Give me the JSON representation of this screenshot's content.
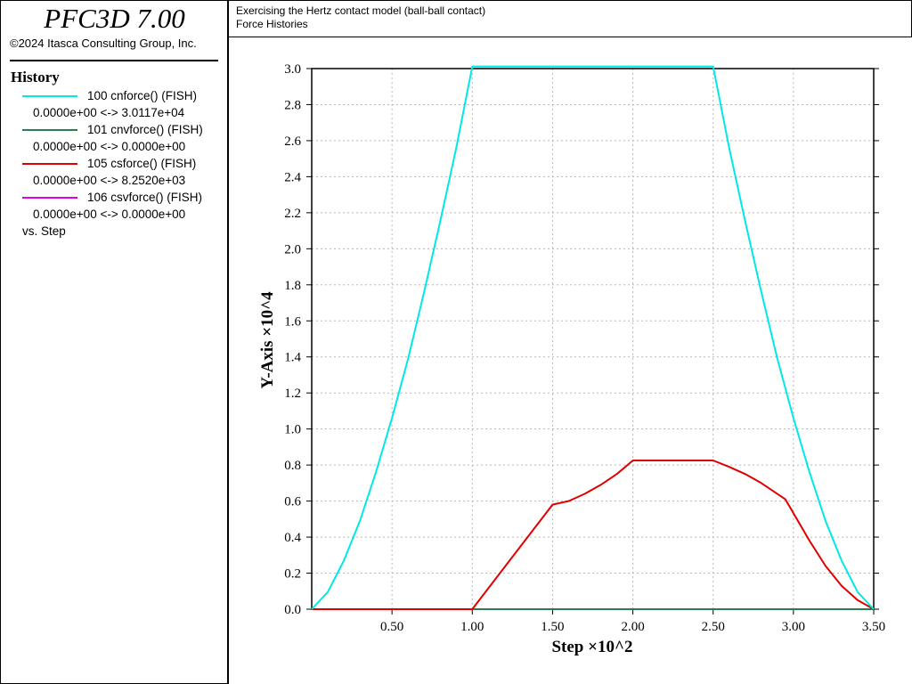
{
  "app": {
    "title": "PFC3D 7.00",
    "copyright": "©2024 Itasca Consulting Group, Inc."
  },
  "plot_header": {
    "line1": "Exercising the Hertz contact model (ball-ball contact)",
    "line2": "Force Histories"
  },
  "legend": {
    "title": "History",
    "items": [
      {
        "label": "100 cnforce() (FISH)",
        "range": "0.0000e+00 <->  3.0117e+04",
        "color": "#00e8e8"
      },
      {
        "label": "101 cnvforce() (FISH)",
        "range": "0.0000e+00 <->  0.0000e+00",
        "color": "#2e7d4f"
      },
      {
        "label": "105 csforce() (FISH)",
        "range": "0.0000e+00 <->  8.2520e+03",
        "color": "#e00000"
      },
      {
        "label": "106 csvforce() (FISH)",
        "range": "0.0000e+00 <->  0.0000e+00",
        "color": "#e000e0"
      }
    ],
    "vs": "vs. Step"
  },
  "chart_data": {
    "type": "line",
    "xlabel": "Step ×10^2",
    "ylabel": "Y-Axis ×10^4",
    "xlim": [
      0,
      3.5
    ],
    "ylim": [
      0,
      3.0
    ],
    "x_ticks": [
      0.5,
      1.0,
      1.5,
      2.0,
      2.5,
      3.0,
      3.5
    ],
    "x_tick_labels": [
      "0.50",
      "1.00",
      "1.50",
      "2.00",
      "2.50",
      "3.00",
      "3.50"
    ],
    "y_ticks": [
      0.0,
      0.2,
      0.4,
      0.6,
      0.8,
      1.0,
      1.2,
      1.4,
      1.6,
      1.8,
      2.0,
      2.2,
      2.4,
      2.6,
      2.8,
      3.0
    ],
    "y_tick_labels": [
      "0.0",
      "0.2",
      "0.4",
      "0.6",
      "0.8",
      "1.0",
      "1.2",
      "1.4",
      "1.6",
      "1.8",
      "2.0",
      "2.2",
      "2.4",
      "2.6",
      "2.8",
      "3.0"
    ],
    "grid": true,
    "series": [
      {
        "name": "100 cnforce() (FISH)",
        "color": "#00e8e8",
        "x": [
          0,
          0.1,
          0.2,
          0.3,
          0.4,
          0.5,
          0.6,
          0.7,
          0.8,
          0.9,
          1.0,
          1.5,
          2.0,
          2.5,
          2.6,
          2.7,
          2.8,
          2.9,
          3.0,
          3.1,
          3.2,
          3.3,
          3.4,
          3.5
        ],
        "y": [
          0,
          0.095,
          0.27,
          0.49,
          0.76,
          1.06,
          1.39,
          1.76,
          2.15,
          2.56,
          3.0117,
          3.0117,
          3.0117,
          3.0117,
          2.56,
          2.15,
          1.76,
          1.39,
          1.06,
          0.76,
          0.49,
          0.27,
          0.095,
          0
        ]
      },
      {
        "name": "101 cnvforce() (FISH)",
        "color": "#2e7d4f",
        "x": [
          0,
          3.5
        ],
        "y": [
          0,
          0
        ]
      },
      {
        "name": "105 csforce() (FISH)",
        "color": "#e00000",
        "x": [
          0,
          1.0,
          1.5,
          1.6,
          1.7,
          1.8,
          1.9,
          2.0,
          2.5,
          2.6,
          2.7,
          2.8,
          2.95,
          3.1,
          3.2,
          3.3,
          3.4,
          3.5
        ],
        "y": [
          0,
          0,
          0.58,
          0.6,
          0.64,
          0.69,
          0.75,
          0.8252,
          0.8252,
          0.79,
          0.75,
          0.7,
          0.61,
          0.38,
          0.24,
          0.13,
          0.05,
          0
        ]
      },
      {
        "name": "106 csvforce() (FISH)",
        "color": "#e000e0",
        "x": [
          0,
          3.5
        ],
        "y": [
          0,
          0
        ]
      }
    ]
  }
}
